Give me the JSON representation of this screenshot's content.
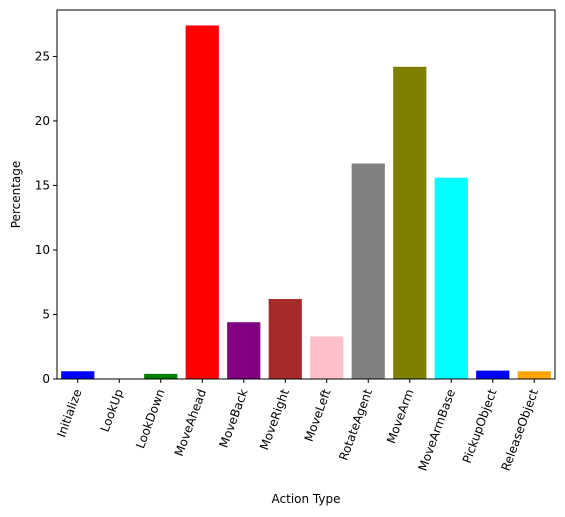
{
  "chart_data": {
    "type": "bar",
    "title": "",
    "xlabel": "Action Type",
    "ylabel": "Percentage",
    "ylim": [
      0,
      28.6
    ],
    "yticks": [
      0,
      5,
      10,
      15,
      20,
      25
    ],
    "grid": false,
    "categories": [
      "Initialize",
      "LookUp",
      "LookDown",
      "MoveAhead",
      "MoveBack",
      "MoveRight",
      "MoveLeft",
      "RotateAgent",
      "MoveArm",
      "MoveArmBase",
      "PickupObject",
      "ReleaseObject"
    ],
    "values": [
      0.6,
      0.0,
      0.4,
      27.4,
      4.4,
      6.2,
      3.3,
      16.7,
      24.2,
      15.6,
      0.65,
      0.6
    ],
    "colors": [
      "#0000ff",
      "#ff8c00",
      "#008000",
      "#ff0000",
      "#800080",
      "#a52a2a",
      "#ffc0cb",
      "#808080",
      "#808000",
      "#00ffff",
      "#0000ff",
      "#ffa500"
    ]
  }
}
